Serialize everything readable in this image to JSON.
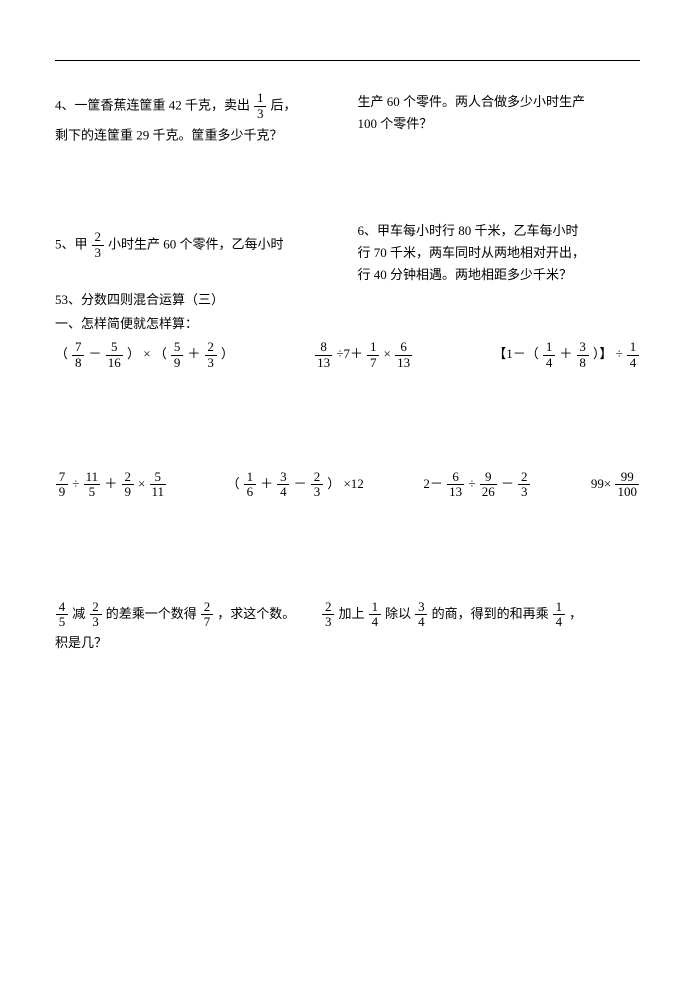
{
  "colors": {
    "text": "#000000",
    "bg": "#ffffff",
    "rule": "#000000"
  },
  "font": {
    "family": "SimSun",
    "size_pt": 10
  },
  "top_right": {
    "line1": "生产 60 个零件。两人合做多少小时生产",
    "line2": "100 个零件？"
  },
  "q4": {
    "p1": "4、一筐香蕉连筐重 42 千克，卖出",
    "frac": {
      "num": "1",
      "den": "3"
    },
    "p2": "后，",
    "p3": "剩下的连筐重 29 千克。筐重多少千克？"
  },
  "q6": {
    "l1": "6、甲车每小时行 80 千米，乙车每小时",
    "l2": "行 70 千米，两车同时从两地相对开出，",
    "l3": "行 40 分钟相遇。两地相距多少千米？"
  },
  "q5": {
    "p1": "5、甲",
    "frac": {
      "num": "2",
      "den": "3"
    },
    "p2": "小时生产 60 个零件，乙每小时"
  },
  "section": {
    "title": "53、分数四则混合运算（三）",
    "sub": "一、怎样简便就怎样算："
  },
  "row1": {
    "e1": {
      "lp": "（",
      "f1n": "7",
      "f1d": "8",
      "op1": "－",
      "f2n": "5",
      "f2d": "16",
      "rp": "）",
      "mul": "×",
      "lp2": "（",
      "f3n": "5",
      "f3d": "9",
      "op2": "＋",
      "f4n": "2",
      "f4d": "3",
      "rp2": "）"
    },
    "e2": {
      "f1n": "8",
      "f1d": "13",
      "op1": "÷7＋",
      "f2n": "1",
      "f2d": "7",
      "op2": "×",
      "f3n": "6",
      "f3d": "13"
    },
    "e3": {
      "lb": "【1－（",
      "f1n": "1",
      "f1d": "4",
      "plus": "＋",
      "f2n": "3",
      "f2d": "8",
      "rb": "）】",
      "div": "÷",
      "f3n": "1",
      "f3d": "4"
    }
  },
  "row2": {
    "e1": {
      "f1n": "7",
      "f1d": "9",
      "d1": "÷",
      "f2n": "11",
      "f2d": "5",
      "p": "＋",
      "f3n": "2",
      "f3d": "9",
      "m": "×",
      "f4n": "5",
      "f4d": "11"
    },
    "e2": {
      "lp": "（",
      "f1n": "1",
      "f1d": "6",
      "p1": "＋",
      "f2n": "3",
      "f2d": "4",
      "m": "－",
      "f3n": "2",
      "f3d": "3",
      "rp": "）",
      "tail": "×12"
    },
    "e3": {
      "pre": "2－",
      "f1n": "6",
      "f1d": "13",
      "d": "÷",
      "f2n": "9",
      "f2d": "26",
      "m": "－",
      "f3n": "2",
      "f3d": "3"
    },
    "e4": {
      "pre": "99×",
      "fn": "99",
      "fd": "100"
    }
  },
  "word": {
    "a": {
      "f1n": "4",
      "f1d": "5",
      "t1": "减",
      "f2n": "2",
      "f2d": "3",
      "t2": "的差乘一个数得",
      "f3n": "2",
      "f3d": "7",
      "t3": "，求这个数。"
    },
    "b": {
      "f1n": "2",
      "f1d": "3",
      "t1": "加上",
      "f2n": "1",
      "f2d": "4",
      "t2": "除以",
      "f3n": "3",
      "f3d": "4",
      "t3": "的商，得到的和再乘",
      "f4n": "1",
      "f4d": "4",
      "t4": "，"
    },
    "c": "积是几？"
  }
}
